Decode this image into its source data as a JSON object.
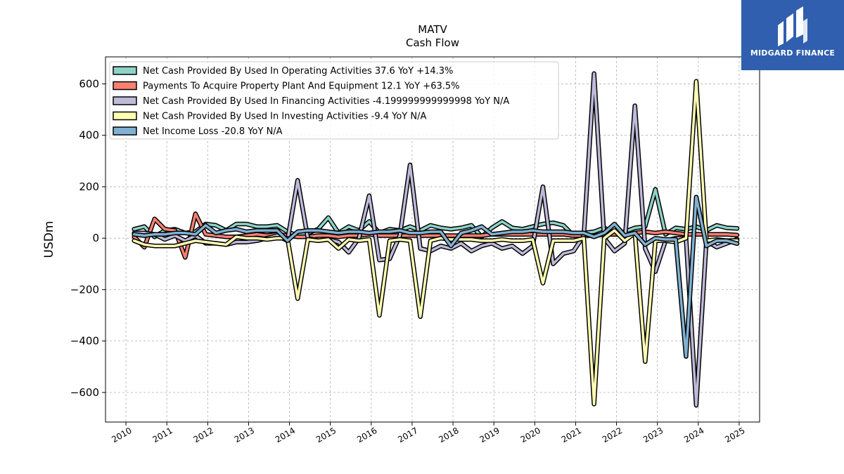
{
  "brand": {
    "name": "MIDGARD FINANCE",
    "bg_color": "#2f5fae"
  },
  "header": {
    "title": "MATV",
    "subtitle": "Cash Flow"
  },
  "chart_data": {
    "type": "line",
    "title": "MATV",
    "subtitle": "Cash Flow",
    "xlabel": "",
    "ylabel": "USDm",
    "xlim": [
      2009.5,
      2025.5
    ],
    "ylim": [
      -715,
      705
    ],
    "x_ticks": [
      2010,
      2011,
      2012,
      2013,
      2014,
      2015,
      2016,
      2017,
      2018,
      2019,
      2020,
      2021,
      2022,
      2023,
      2024,
      2025
    ],
    "y_ticks": [
      -600,
      -400,
      -200,
      0,
      200,
      400,
      600
    ],
    "y_tick_labels": [
      "−600",
      "−400",
      "−200",
      "0",
      "200",
      "400",
      "600"
    ],
    "grid": true,
    "legend_position": "top-left",
    "x": [
      2010.2,
      2010.45,
      2010.7,
      2010.95,
      2011.2,
      2011.45,
      2011.7,
      2011.95,
      2012.2,
      2012.45,
      2012.7,
      2012.95,
      2013.2,
      2013.45,
      2013.7,
      2013.95,
      2014.2,
      2014.45,
      2014.7,
      2014.95,
      2015.2,
      2015.45,
      2015.7,
      2015.95,
      2016.2,
      2016.45,
      2016.7,
      2016.95,
      2017.2,
      2017.45,
      2017.7,
      2017.95,
      2018.2,
      2018.45,
      2018.7,
      2018.95,
      2019.2,
      2019.45,
      2019.7,
      2019.95,
      2020.2,
      2020.45,
      2020.7,
      2020.95,
      2021.2,
      2021.45,
      2021.7,
      2021.95,
      2022.2,
      2022.45,
      2022.7,
      2022.95,
      2023.2,
      2023.45,
      2023.7,
      2023.95,
      2024.2,
      2024.45,
      2024.7,
      2024.95
    ],
    "series": [
      {
        "name": "Net Cash Provided By Used In Operating Activities  37.6 YoY +14.3%",
        "color": "#8dd3c7",
        "values": [
          35,
          45,
          5,
          30,
          35,
          20,
          25,
          55,
          50,
          30,
          55,
          55,
          45,
          45,
          50,
          25,
          10,
          20,
          35,
          80,
          20,
          45,
          30,
          65,
          20,
          35,
          30,
          45,
          30,
          50,
          40,
          35,
          40,
          50,
          5,
          40,
          65,
          40,
          35,
          45,
          55,
          60,
          50,
          10,
          20,
          25,
          40,
          20,
          25,
          40,
          45,
          190,
          15,
          40,
          35,
          45,
          30,
          50,
          40,
          38
        ]
      },
      {
        "name": "Payments To Acquire Property Plant And Equipment  12.1 YoY +63.5%",
        "color": "#fb8072",
        "values": [
          5,
          -35,
          75,
          35,
          30,
          -75,
          95,
          15,
          10,
          5,
          5,
          10,
          15,
          10,
          15,
          10,
          5,
          5,
          10,
          10,
          5,
          10,
          10,
          15,
          10,
          10,
          10,
          10,
          10,
          10,
          10,
          10,
          10,
          10,
          10,
          15,
          15,
          15,
          15,
          15,
          15,
          15,
          15,
          10,
          10,
          10,
          15,
          15,
          15,
          20,
          25,
          20,
          25,
          20,
          15,
          15,
          15,
          15,
          15,
          12
        ]
      },
      {
        "name": "Net Cash Provided By Used In Financing Activities  -4.199999999999998 YoY N/A",
        "color": "#bebada",
        "values": [
          20,
          20,
          15,
          -5,
          10,
          -10,
          10,
          -20,
          -20,
          -25,
          -15,
          -15,
          -10,
          0,
          10,
          -10,
          225,
          0,
          -10,
          -5,
          -15,
          -55,
          0,
          165,
          -85,
          -80,
          10,
          285,
          -40,
          -50,
          -30,
          -40,
          -20,
          -50,
          -30,
          -20,
          -40,
          -30,
          -60,
          -30,
          200,
          -100,
          -60,
          -50,
          10,
          640,
          0,
          -50,
          -20,
          515,
          -40,
          -130,
          -10,
          0,
          0,
          -650,
          -10,
          -35,
          -20,
          -4
        ]
      },
      {
        "name": "Net Cash Provided By Used In Investing Activities  -9.4 YoY N/A",
        "color": "#ffffb3",
        "values": [
          -10,
          -25,
          -30,
          -30,
          -30,
          -20,
          -10,
          -15,
          -20,
          -25,
          5,
          0,
          0,
          -5,
          0,
          0,
          -235,
          -5,
          -10,
          -5,
          -40,
          -5,
          -10,
          -5,
          -300,
          -10,
          -5,
          -10,
          -305,
          -10,
          0,
          -5,
          -5,
          -5,
          -10,
          -10,
          -5,
          -10,
          -10,
          -5,
          -175,
          -10,
          -10,
          -10,
          0,
          -645,
          0,
          30,
          -10,
          20,
          -480,
          -10,
          -10,
          -15,
          0,
          610,
          -10,
          -5,
          -10,
          -9
        ]
      },
      {
        "name": "Net Income Loss  -20.8 YoY N/A",
        "color": "#80b1d3",
        "values": [
          15,
          10,
          15,
          15,
          20,
          20,
          15,
          50,
          20,
          30,
          35,
          25,
          30,
          30,
          30,
          -10,
          25,
          30,
          30,
          25,
          20,
          25,
          25,
          20,
          25,
          25,
          30,
          20,
          20,
          25,
          25,
          -30,
          20,
          30,
          45,
          15,
          20,
          25,
          25,
          30,
          25,
          25,
          25,
          20,
          20,
          5,
          20,
          55,
          10,
          20,
          -25,
          0,
          -5,
          -5,
          -460,
          160,
          -30,
          -10,
          -10,
          -21
        ]
      }
    ]
  }
}
